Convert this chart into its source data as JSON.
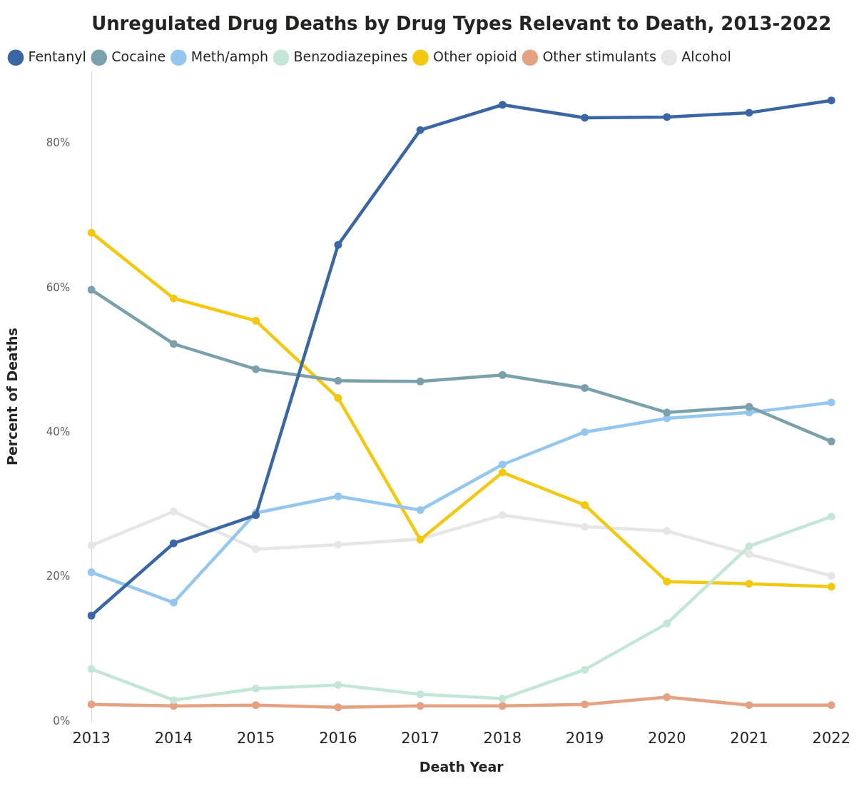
{
  "chart_data": {
    "type": "line",
    "title": "Unregulated Drug Deaths by Drug Types Relevant to Death, 2013-2022",
    "xlabel": "Death Year",
    "ylabel": "Percent of Deaths",
    "categories": [
      "2013",
      "2014",
      "2015",
      "2016",
      "2017",
      "2018",
      "2019",
      "2020",
      "2021",
      "2022"
    ],
    "series": [
      {
        "name": "Fentanyl",
        "color": "#3a66a3",
        "values": [
          14.7,
          24.7,
          28.6,
          66.0,
          81.9,
          85.4,
          83.6,
          83.7,
          84.3,
          86.0
        ]
      },
      {
        "name": "Cocaine",
        "color": "#7aa0ac",
        "values": [
          59.8,
          52.3,
          48.8,
          47.2,
          47.1,
          48.0,
          46.2,
          42.8,
          43.6,
          38.8
        ]
      },
      {
        "name": "Meth/amph",
        "color": "#94c6ee",
        "values": [
          20.7,
          16.5,
          28.9,
          31.2,
          29.3,
          35.6,
          40.1,
          42.0,
          42.8,
          44.2
        ]
      },
      {
        "name": "Benzodiazepines",
        "color": "#c3e6d6",
        "values": [
          7.3,
          3.0,
          4.6,
          5.1,
          3.8,
          3.2,
          7.2,
          13.6,
          24.3,
          28.4
        ]
      },
      {
        "name": "Other opioid",
        "color": "#f2c811",
        "values": [
          67.7,
          58.6,
          55.5,
          44.8,
          25.2,
          34.5,
          30.0,
          19.4,
          19.1,
          18.7
        ]
      },
      {
        "name": "Other stimulants",
        "color": "#e5a282",
        "values": [
          2.4,
          2.2,
          2.3,
          2.0,
          2.2,
          2.2,
          2.4,
          3.4,
          2.3,
          2.3
        ]
      },
      {
        "name": "Alcohol",
        "color": "#e6e6e6",
        "values": [
          24.4,
          29.1,
          23.9,
          24.5,
          25.3,
          28.6,
          27.0,
          26.4,
          23.2,
          20.2
        ]
      }
    ],
    "yticks": [
      {
        "value": 0,
        "label": "0%"
      },
      {
        "value": 20,
        "label": "20%"
      },
      {
        "value": 40,
        "label": "40%"
      },
      {
        "value": 60,
        "label": "60%"
      },
      {
        "value": 80,
        "label": "80%"
      }
    ],
    "ylim": [
      0,
      90
    ],
    "grid": false,
    "legend": "top left",
    "marker": "circle",
    "line_style": "solid"
  }
}
